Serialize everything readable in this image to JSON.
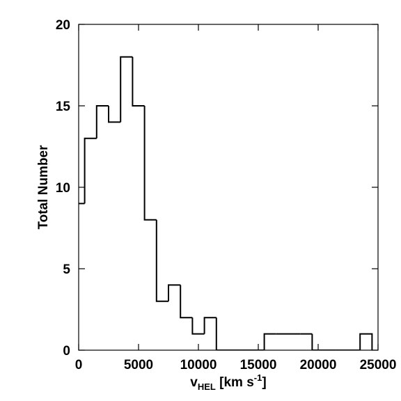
{
  "chart_data": {
    "type": "histogram",
    "xlabel": {
      "main": "v",
      "sub": "HEL",
      "rest": " [km s",
      "sup": "-1",
      "end": "]"
    },
    "ylabel": "Total Number",
    "bins": [
      -500,
      500,
      1500,
      2500,
      3500,
      4500,
      5500,
      6500,
      7500,
      8500,
      9500,
      10500,
      11500,
      12500,
      13500,
      14500,
      15500,
      16500,
      17500,
      18500,
      19500,
      20500,
      21500,
      22500,
      23500,
      24500
    ],
    "values": [
      9,
      13,
      15,
      14,
      18,
      15,
      8,
      3,
      4,
      2,
      1,
      2,
      0,
      0,
      0,
      0,
      1,
      1,
      1,
      1,
      0,
      0,
      0,
      0,
      1
    ],
    "color": "#000000",
    "xlim": [
      0,
      25000
    ],
    "xticks": [
      0,
      5000,
      10000,
      15000,
      20000,
      25000
    ],
    "ylim": [
      0,
      20
    ],
    "yticks": [
      0,
      5,
      10,
      15,
      20
    ]
  }
}
